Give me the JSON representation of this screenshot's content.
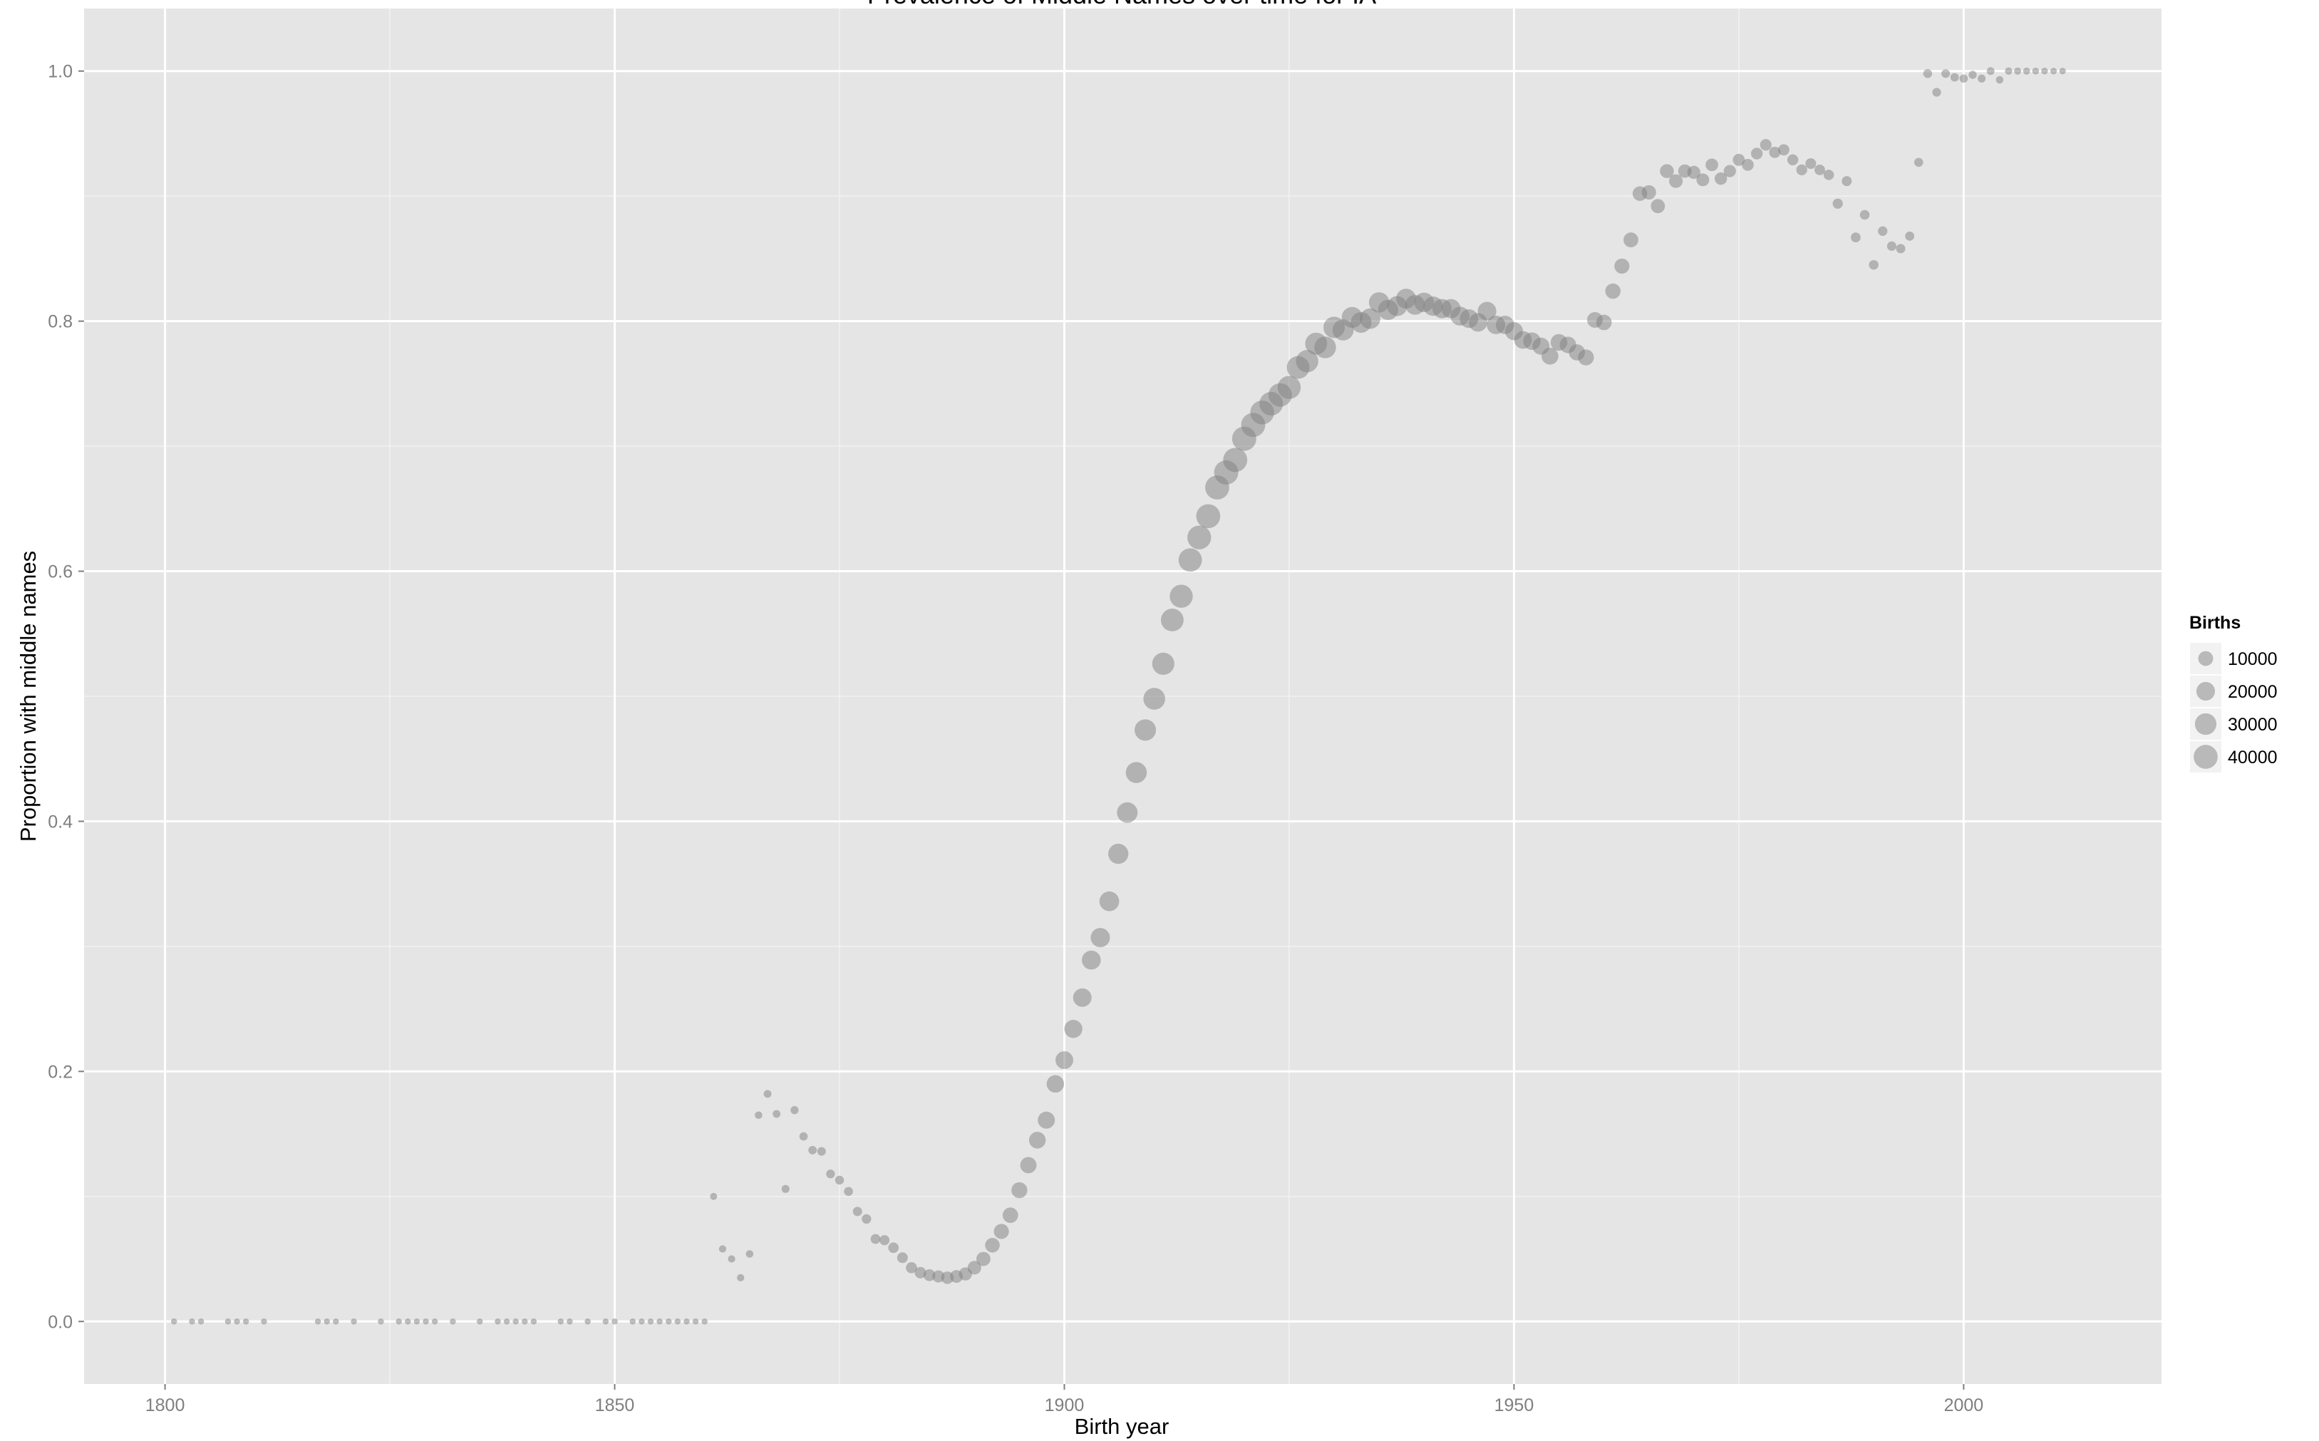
{
  "chart_data": {
    "type": "scatter",
    "title": "Prevalence of Middle Names over time for IA",
    "xlabel": "Birth year",
    "ylabel": "Proportion with middle names",
    "xlim": [
      1791,
      2022
    ],
    "ylim": [
      -0.05,
      1.05
    ],
    "x_ticks": [
      1800,
      1850,
      1900,
      1950,
      2000
    ],
    "y_ticks": [
      0.0,
      0.2,
      0.4,
      0.6,
      0.8,
      1.0
    ],
    "x_tick_labels": [
      "1800",
      "1850",
      "1900",
      "1950",
      "2000"
    ],
    "y_tick_labels": [
      "0.0",
      "0.2",
      "0.4",
      "0.6",
      "0.8",
      "1.0"
    ],
    "grid": true,
    "colors": {
      "panel": "#e5e5e5",
      "point": "#808080",
      "grid_major": "#ffffff",
      "grid_minor": "#f2f2f2"
    },
    "legend": {
      "title": "Births",
      "placement": "right",
      "entries": [
        {
          "label": "10000",
          "value": 10000
        },
        {
          "label": "20000",
          "value": 20000
        },
        {
          "label": "30000",
          "value": 30000
        },
        {
          "label": "40000",
          "value": 40000
        }
      ]
    },
    "points": [
      [
        1801,
        0.0,
        20
      ],
      [
        1803,
        0.0,
        20
      ],
      [
        1804,
        0.0,
        20
      ],
      [
        1807,
        0.0,
        20
      ],
      [
        1808,
        0.0,
        20
      ],
      [
        1809,
        0.0,
        20
      ],
      [
        1811,
        0.0,
        20
      ],
      [
        1817,
        0.0,
        20
      ],
      [
        1818,
        0.0,
        20
      ],
      [
        1819,
        0.0,
        20
      ],
      [
        1821,
        0.0,
        20
      ],
      [
        1824,
        0.0,
        20
      ],
      [
        1826,
        0.0,
        20
      ],
      [
        1827,
        0.0,
        20
      ],
      [
        1828,
        0.0,
        20
      ],
      [
        1829,
        0.0,
        20
      ],
      [
        1830,
        0.0,
        20
      ],
      [
        1832,
        0.0,
        20
      ],
      [
        1835,
        0.0,
        20
      ],
      [
        1837,
        0.0,
        20
      ],
      [
        1838,
        0.0,
        20
      ],
      [
        1839,
        0.0,
        20
      ],
      [
        1840,
        0.0,
        20
      ],
      [
        1841,
        0.0,
        20
      ],
      [
        1844,
        0.0,
        20
      ],
      [
        1845,
        0.0,
        20
      ],
      [
        1847,
        0.0,
        20
      ],
      [
        1849,
        0.0,
        20
      ],
      [
        1850,
        0.0,
        20
      ],
      [
        1852,
        0.0,
        20
      ],
      [
        1853,
        0.0,
        20
      ],
      [
        1854,
        0.0,
        20
      ],
      [
        1855,
        0.0,
        20
      ],
      [
        1856,
        0.0,
        20
      ],
      [
        1857,
        0.0,
        20
      ],
      [
        1858,
        0.0,
        20
      ],
      [
        1859,
        0.0,
        20
      ],
      [
        1860,
        0.0,
        20
      ],
      [
        1861,
        0.1,
        200
      ],
      [
        1862,
        0.058,
        300
      ],
      [
        1863,
        0.05,
        300
      ],
      [
        1864,
        0.035,
        300
      ],
      [
        1865,
        0.054,
        400
      ],
      [
        1866,
        0.165,
        400
      ],
      [
        1867,
        0.182,
        500
      ],
      [
        1868,
        0.166,
        500
      ],
      [
        1869,
        0.106,
        600
      ],
      [
        1870,
        0.169,
        700
      ],
      [
        1871,
        0.148,
        800
      ],
      [
        1872,
        0.137,
        900
      ],
      [
        1873,
        0.136,
        1000
      ],
      [
        1874,
        0.118,
        1100
      ],
      [
        1875,
        0.113,
        1200
      ],
      [
        1876,
        0.104,
        1300
      ],
      [
        1877,
        0.088,
        1500
      ],
      [
        1878,
        0.082,
        1700
      ],
      [
        1879,
        0.066,
        2000
      ],
      [
        1880,
        0.065,
        2300
      ],
      [
        1881,
        0.059,
        2700
      ],
      [
        1882,
        0.051,
        3000
      ],
      [
        1883,
        0.043,
        3500
      ],
      [
        1884,
        0.039,
        4000
      ],
      [
        1885,
        0.037,
        4500
      ],
      [
        1886,
        0.036,
        5000
      ],
      [
        1887,
        0.035,
        5500
      ],
      [
        1888,
        0.036,
        6000
      ],
      [
        1889,
        0.038,
        6500
      ],
      [
        1890,
        0.043,
        7500
      ],
      [
        1891,
        0.05,
        8500
      ],
      [
        1892,
        0.061,
        9500
      ],
      [
        1893,
        0.072,
        10500
      ],
      [
        1894,
        0.085,
        11500
      ],
      [
        1895,
        0.105,
        12500
      ],
      [
        1896,
        0.125,
        13500
      ],
      [
        1897,
        0.145,
        14500
      ],
      [
        1898,
        0.161,
        15500
      ],
      [
        1899,
        0.19,
        16500
      ],
      [
        1900,
        0.209,
        17500
      ],
      [
        1901,
        0.234,
        18500
      ],
      [
        1902,
        0.259,
        19500
      ],
      [
        1903,
        0.289,
        21000
      ],
      [
        1904,
        0.307,
        22000
      ],
      [
        1905,
        0.336,
        23500
      ],
      [
        1906,
        0.374,
        25000
      ],
      [
        1907,
        0.407,
        26500
      ],
      [
        1908,
        0.439,
        28000
      ],
      [
        1909,
        0.473,
        29500
      ],
      [
        1910,
        0.498,
        31000
      ],
      [
        1911,
        0.526,
        32500
      ],
      [
        1912,
        0.561,
        34500
      ],
      [
        1913,
        0.58,
        36000
      ],
      [
        1914,
        0.609,
        37500
      ],
      [
        1915,
        0.627,
        39000
      ],
      [
        1916,
        0.644,
        40000
      ],
      [
        1917,
        0.667,
        40500
      ],
      [
        1918,
        0.679,
        41000
      ],
      [
        1919,
        0.689,
        40500
      ],
      [
        1920,
        0.706,
        41000
      ],
      [
        1921,
        0.717,
        40500
      ],
      [
        1922,
        0.727,
        39500
      ],
      [
        1923,
        0.734,
        38500
      ],
      [
        1924,
        0.741,
        37500
      ],
      [
        1925,
        0.747,
        36000
      ],
      [
        1926,
        0.763,
        34500
      ],
      [
        1927,
        0.768,
        33000
      ],
      [
        1928,
        0.782,
        31500
      ],
      [
        1929,
        0.779,
        30500
      ],
      [
        1930,
        0.795,
        29500
      ],
      [
        1931,
        0.793,
        28500
      ],
      [
        1932,
        0.803,
        27500
      ],
      [
        1933,
        0.799,
        27000
      ],
      [
        1934,
        0.802,
        26000
      ],
      [
        1935,
        0.815,
        25500
      ],
      [
        1936,
        0.809,
        25000
      ],
      [
        1937,
        0.812,
        24500
      ],
      [
        1938,
        0.818,
        24000
      ],
      [
        1939,
        0.813,
        23500
      ],
      [
        1940,
        0.815,
        23000
      ],
      [
        1941,
        0.812,
        22500
      ],
      [
        1942,
        0.81,
        22000
      ],
      [
        1943,
        0.81,
        21500
      ],
      [
        1944,
        0.804,
        21000
      ],
      [
        1945,
        0.802,
        20000
      ],
      [
        1946,
        0.799,
        19500
      ],
      [
        1947,
        0.808,
        20000
      ],
      [
        1948,
        0.797,
        19500
      ],
      [
        1949,
        0.797,
        19000
      ],
      [
        1950,
        0.792,
        18000
      ],
      [
        1951,
        0.785,
        17000
      ],
      [
        1952,
        0.784,
        16500
      ],
      [
        1953,
        0.78,
        15500
      ],
      [
        1954,
        0.772,
        15000
      ],
      [
        1955,
        0.783,
        14500
      ],
      [
        1956,
        0.781,
        14000
      ],
      [
        1957,
        0.775,
        13000
      ],
      [
        1958,
        0.771,
        12500
      ],
      [
        1959,
        0.801,
        12000
      ],
      [
        1960,
        0.799,
        11500
      ],
      [
        1961,
        0.824,
        11000
      ],
      [
        1962,
        0.844,
        10500
      ],
      [
        1963,
        0.865,
        10000
      ],
      [
        1964,
        0.902,
        9500
      ],
      [
        1965,
        0.903,
        9000
      ],
      [
        1966,
        0.892,
        8500
      ],
      [
        1967,
        0.92,
        8000
      ],
      [
        1968,
        0.912,
        7500
      ],
      [
        1969,
        0.92,
        7000
      ],
      [
        1970,
        0.919,
        6500
      ],
      [
        1971,
        0.913,
        6000
      ],
      [
        1972,
        0.925,
        5700
      ],
      [
        1973,
        0.914,
        5400
      ],
      [
        1974,
        0.92,
        5100
      ],
      [
        1975,
        0.929,
        4800
      ],
      [
        1976,
        0.925,
        4500
      ],
      [
        1977,
        0.934,
        4200
      ],
      [
        1978,
        0.941,
        4000
      ],
      [
        1979,
        0.935,
        3800
      ],
      [
        1980,
        0.937,
        3600
      ],
      [
        1981,
        0.929,
        3400
      ],
      [
        1982,
        0.921,
        3200
      ],
      [
        1983,
        0.926,
        3000
      ],
      [
        1984,
        0.921,
        2800
      ],
      [
        1985,
        0.917,
        2600
      ],
      [
        1986,
        0.894,
        2400
      ],
      [
        1987,
        0.912,
        2200
      ],
      [
        1988,
        0.867,
        2000
      ],
      [
        1989,
        0.885,
        1900
      ],
      [
        1990,
        0.845,
        1800
      ],
      [
        1991,
        0.872,
        1700
      ],
      [
        1992,
        0.86,
        1600
      ],
      [
        1993,
        0.858,
        1500
      ],
      [
        1994,
        0.868,
        1400
      ],
      [
        1995,
        0.927,
        1300
      ],
      [
        1996,
        0.998,
        1200
      ],
      [
        1997,
        0.983,
        1100
      ],
      [
        1998,
        0.998,
        1000
      ],
      [
        1999,
        0.995,
        900
      ],
      [
        2000,
        0.994,
        800
      ],
      [
        2001,
        0.997,
        700
      ],
      [
        2002,
        0.994,
        600
      ],
      [
        2003,
        1.0,
        500
      ],
      [
        2004,
        0.993,
        400
      ],
      [
        2005,
        1.0,
        300
      ],
      [
        2006,
        1.0,
        250
      ],
      [
        2007,
        1.0,
        200
      ],
      [
        2008,
        1.0,
        150
      ],
      [
        2009,
        1.0,
        120
      ],
      [
        2010,
        1.0,
        100
      ],
      [
        2011,
        1.0,
        80
      ]
    ]
  }
}
